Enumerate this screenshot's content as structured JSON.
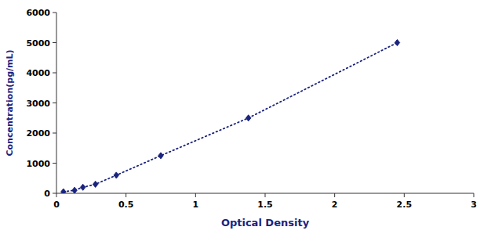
{
  "chart_data": {
    "type": "line",
    "x": [
      0.05,
      0.13,
      0.19,
      0.28,
      0.43,
      0.75,
      1.38,
      2.45
    ],
    "values": [
      50,
      100,
      200,
      300,
      600,
      1250,
      2500,
      5000
    ],
    "color": "#1a237e",
    "marker": "diamond",
    "line_style": "dotted",
    "xlabel": "Optical Density",
    "ylabel": "Concentration(pg/mL)",
    "xlim": [
      0,
      3
    ],
    "ylim": [
      0,
      6000
    ],
    "xticks": [
      0,
      0.5,
      1,
      1.5,
      2,
      2.5,
      3
    ],
    "yticks": [
      0,
      1000,
      2000,
      3000,
      4000,
      5000,
      6000
    ],
    "grid": false
  }
}
